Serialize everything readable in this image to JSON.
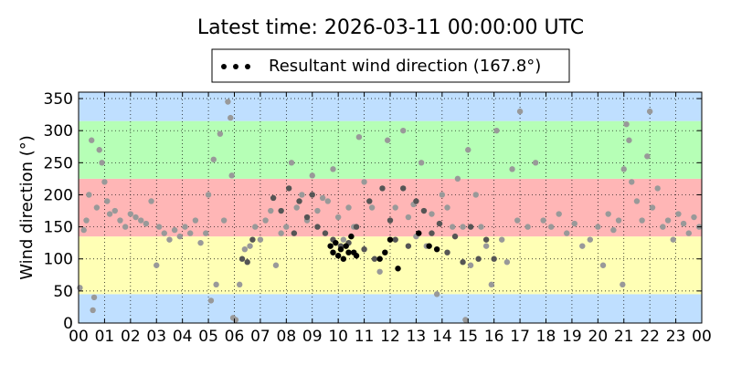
{
  "chart_data": {
    "type": "scatter",
    "title": "Latest time: 2026-03-11 00:00:00 UTC",
    "xlabel": "",
    "ylabel": "Wind direction (°)",
    "xlim": [
      0,
      24
    ],
    "ylim": [
      0,
      360
    ],
    "x_ticks": [
      0,
      1,
      2,
      3,
      4,
      5,
      6,
      7,
      8,
      9,
      10,
      11,
      12,
      13,
      14,
      15,
      16,
      17,
      18,
      19,
      20,
      21,
      22,
      23,
      24
    ],
    "x_tick_labels": [
      "00",
      "01",
      "02",
      "03",
      "04",
      "05",
      "06",
      "07",
      "08",
      "09",
      "10",
      "11",
      "12",
      "13",
      "14",
      "15",
      "16",
      "17",
      "18",
      "19",
      "20",
      "21",
      "22",
      "23",
      "00"
    ],
    "y_ticks": [
      0,
      50,
      100,
      150,
      200,
      250,
      300,
      350
    ],
    "grid": true,
    "legend": {
      "placement": "top-center",
      "label": "Resultant wind direction (167.8°)"
    },
    "bands": [
      {
        "from": 0,
        "to": 45,
        "color": "#bfdfff"
      },
      {
        "from": 45,
        "to": 135,
        "color": "#ffffb5"
      },
      {
        "from": 135,
        "to": 225,
        "color": "#ffb6b6"
      },
      {
        "from": 225,
        "to": 315,
        "color": "#b6ffb6"
      },
      {
        "from": 315,
        "to": 360,
        "color": "#bfdfff"
      }
    ],
    "series": [
      {
        "color": "#999999",
        "points": [
          [
            0.05,
            55
          ],
          [
            0.2,
            145
          ],
          [
            0.3,
            160
          ],
          [
            0.4,
            200
          ],
          [
            0.5,
            285
          ],
          [
            0.55,
            20
          ],
          [
            0.6,
            40
          ],
          [
            0.7,
            180
          ],
          [
            0.8,
            270
          ],
          [
            0.9,
            250
          ],
          [
            1.0,
            220
          ],
          [
            1.1,
            190
          ],
          [
            1.2,
            170
          ],
          [
            1.4,
            175
          ],
          [
            1.6,
            160
          ],
          [
            1.8,
            150
          ],
          [
            2.0,
            170
          ],
          [
            2.2,
            165
          ],
          [
            2.4,
            160
          ],
          [
            2.6,
            155
          ],
          [
            2.8,
            190
          ],
          [
            3.0,
            90
          ],
          [
            3.1,
            150
          ],
          [
            3.3,
            140
          ],
          [
            3.5,
            130
          ],
          [
            3.7,
            145
          ],
          [
            3.9,
            135
          ],
          [
            4.1,
            150
          ],
          [
            4.3,
            140
          ],
          [
            4.5,
            160
          ],
          [
            4.7,
            125
          ],
          [
            4.9,
            140
          ],
          [
            5.0,
            200
          ],
          [
            5.1,
            35
          ],
          [
            5.2,
            255
          ],
          [
            5.3,
            60
          ],
          [
            5.45,
            295
          ],
          [
            5.6,
            160
          ],
          [
            5.75,
            345
          ],
          [
            5.85,
            320
          ],
          [
            5.9,
            230
          ],
          [
            5.95,
            8
          ],
          [
            6.05,
            5
          ],
          [
            6.2,
            60
          ],
          [
            6.4,
            115
          ],
          [
            6.6,
            120
          ],
          [
            6.8,
            150
          ],
          [
            7.0,
            130
          ],
          [
            7.2,
            160
          ],
          [
            7.4,
            175
          ],
          [
            7.6,
            90
          ],
          [
            7.8,
            140
          ],
          [
            8.0,
            150
          ],
          [
            8.2,
            250
          ],
          [
            8.4,
            180
          ],
          [
            8.6,
            200
          ],
          [
            8.8,
            160
          ],
          [
            9.0,
            230
          ],
          [
            9.2,
            175
          ],
          [
            9.4,
            195
          ],
          [
            9.6,
            190
          ],
          [
            9.8,
            240
          ],
          [
            10.0,
            165
          ],
          [
            10.2,
            130
          ],
          [
            10.4,
            180
          ],
          [
            10.6,
            150
          ],
          [
            10.8,
            290
          ],
          [
            11.0,
            220
          ],
          [
            11.3,
            180
          ],
          [
            11.6,
            80
          ],
          [
            11.9,
            285
          ],
          [
            12.2,
            180
          ],
          [
            12.5,
            300
          ],
          [
            12.7,
            165
          ],
          [
            12.9,
            185
          ],
          [
            13.0,
            135
          ],
          [
            13.2,
            250
          ],
          [
            13.4,
            120
          ],
          [
            13.6,
            170
          ],
          [
            13.8,
            45
          ],
          [
            14.0,
            200
          ],
          [
            14.2,
            180
          ],
          [
            14.4,
            150
          ],
          [
            14.6,
            225
          ],
          [
            14.8,
            150
          ],
          [
            14.9,
            5
          ],
          [
            15.0,
            270
          ],
          [
            15.1,
            90
          ],
          [
            15.3,
            200
          ],
          [
            15.5,
            150
          ],
          [
            15.7,
            120
          ],
          [
            15.9,
            60
          ],
          [
            16.1,
            300
          ],
          [
            16.3,
            130
          ],
          [
            16.5,
            95
          ],
          [
            16.7,
            240
          ],
          [
            16.9,
            160
          ],
          [
            17.0,
            330
          ],
          [
            17.3,
            150
          ],
          [
            17.6,
            250
          ],
          [
            17.9,
            160
          ],
          [
            18.2,
            150
          ],
          [
            18.5,
            170
          ],
          [
            18.8,
            140
          ],
          [
            19.1,
            155
          ],
          [
            19.4,
            120
          ],
          [
            19.7,
            130
          ],
          [
            20.0,
            150
          ],
          [
            20.2,
            90
          ],
          [
            20.4,
            170
          ],
          [
            20.6,
            145
          ],
          [
            20.8,
            160
          ],
          [
            20.95,
            60
          ],
          [
            21.0,
            240
          ],
          [
            21.1,
            310
          ],
          [
            21.2,
            285
          ],
          [
            21.3,
            220
          ],
          [
            21.5,
            190
          ],
          [
            21.7,
            160
          ],
          [
            21.9,
            260
          ],
          [
            22.0,
            330
          ],
          [
            22.1,
            180
          ],
          [
            22.3,
            210
          ],
          [
            22.5,
            150
          ],
          [
            22.7,
            160
          ],
          [
            22.9,
            130
          ],
          [
            23.1,
            170
          ],
          [
            23.3,
            155
          ],
          [
            23.5,
            140
          ],
          [
            23.7,
            165
          ],
          [
            23.9,
            150
          ]
        ]
      },
      {
        "color": "#555555",
        "points": [
          [
            6.3,
            100
          ],
          [
            6.5,
            95
          ],
          [
            6.7,
            130
          ],
          [
            7.5,
            195
          ],
          [
            7.8,
            175
          ],
          [
            8.1,
            210
          ],
          [
            8.3,
            140
          ],
          [
            8.5,
            190
          ],
          [
            8.8,
            165
          ],
          [
            9.0,
            200
          ],
          [
            9.2,
            150
          ],
          [
            9.5,
            140
          ],
          [
            9.8,
            130
          ],
          [
            10.1,
            120
          ],
          [
            10.4,
            125
          ],
          [
            10.7,
            150
          ],
          [
            11.0,
            115
          ],
          [
            11.2,
            190
          ],
          [
            11.4,
            100
          ],
          [
            11.7,
            210
          ],
          [
            12.0,
            160
          ],
          [
            12.2,
            130
          ],
          [
            12.5,
            210
          ],
          [
            12.7,
            120
          ],
          [
            13.0,
            190
          ],
          [
            13.3,
            175
          ],
          [
            13.6,
            140
          ],
          [
            13.9,
            155
          ],
          [
            14.2,
            110
          ],
          [
            14.5,
            135
          ],
          [
            14.8,
            95
          ],
          [
            15.1,
            150
          ],
          [
            15.4,
            100
          ],
          [
            15.7,
            130
          ],
          [
            16.0,
            100
          ]
        ]
      },
      {
        "color": "#000000",
        "points": [
          [
            9.7,
            120
          ],
          [
            9.8,
            110
          ],
          [
            9.9,
            125
          ],
          [
            10.0,
            105
          ],
          [
            10.1,
            115
          ],
          [
            10.2,
            100
          ],
          [
            10.3,
            120
          ],
          [
            10.4,
            110
          ],
          [
            10.5,
            135
          ],
          [
            10.6,
            110
          ],
          [
            10.7,
            105
          ],
          [
            11.6,
            100
          ],
          [
            11.8,
            110
          ],
          [
            12.0,
            130
          ],
          [
            12.3,
            85
          ],
          [
            13.1,
            140
          ],
          [
            13.5,
            120
          ],
          [
            13.8,
            115
          ]
        ]
      }
    ]
  }
}
